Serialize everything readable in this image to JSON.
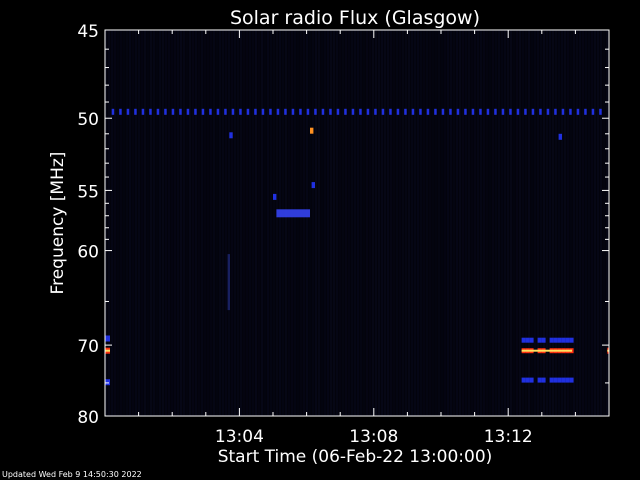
{
  "chart_data": {
    "type": "heatmap",
    "title": "Solar radio Flux (Glasgow)",
    "xlabel": "Start Time (06-Feb-22 13:00:00)",
    "ylabel": "Frequency [MHz]",
    "xlim_minutes": [
      0,
      15
    ],
    "ylim": [
      45,
      80
    ],
    "x_ticks": [
      {
        "minute": 4,
        "label": "13:04"
      },
      {
        "minute": 8,
        "label": "13:08"
      },
      {
        "minute": 12,
        "label": "13:12"
      }
    ],
    "y_ticks": [
      45,
      50,
      55,
      60,
      70,
      80
    ],
    "features": [
      {
        "kind": "dotted-line",
        "freq": 49.6,
        "start_min": 0.2,
        "end_min": 14.8,
        "color": "#2030e0"
      },
      {
        "kind": "spot",
        "freq": 50.8,
        "start_min": 6.1,
        "end_min": 6.2,
        "color": "#ff9020"
      },
      {
        "kind": "spot",
        "freq": 51.1,
        "start_min": 3.7,
        "end_min": 3.8,
        "color": "#2030e0"
      },
      {
        "kind": "spot",
        "freq": 51.2,
        "start_min": 13.5,
        "end_min": 13.6,
        "color": "#2030e0"
      },
      {
        "kind": "blob",
        "freq": 56.8,
        "start_min": 5.1,
        "end_min": 6.1,
        "color": "#3848ff"
      },
      {
        "kind": "spot",
        "freq": 55.5,
        "start_min": 5.0,
        "end_min": 5.1,
        "color": "#2030e0"
      },
      {
        "kind": "spot",
        "freq": 54.6,
        "start_min": 6.15,
        "end_min": 6.25,
        "color": "#2030e0"
      },
      {
        "kind": "streak",
        "freq": 63.0,
        "start_min": 3.65,
        "end_min": 3.72,
        "color": "#182060"
      },
      {
        "kind": "band",
        "freq": 69.4,
        "start_min": 12.4,
        "end_min": 13.9,
        "color": "#2030e0"
      },
      {
        "kind": "band",
        "freq": 70.7,
        "start_min": 12.4,
        "end_min": 13.9,
        "color": "#ff3010"
      },
      {
        "kind": "band",
        "freq": 74.6,
        "start_min": 12.4,
        "end_min": 13.9,
        "color": "#2030e0"
      },
      {
        "kind": "edge",
        "freq": 69.2,
        "start_min": 0.0,
        "end_min": 0.15,
        "color": "#2030e0"
      },
      {
        "kind": "edge",
        "freq": 70.7,
        "start_min": 0.0,
        "end_min": 0.15,
        "color": "#ff3010"
      },
      {
        "kind": "edge",
        "freq": 74.9,
        "start_min": 0.0,
        "end_min": 0.15,
        "color": "#2030e0"
      },
      {
        "kind": "edge",
        "freq": 70.7,
        "start_min": 14.95,
        "end_min": 15.0,
        "color": "#ff3010"
      }
    ],
    "background_color": "#000000",
    "axis_color": "#ffffff"
  },
  "footer": {
    "updated": "Updated Wed Feb  9 14:50:30 2022"
  }
}
